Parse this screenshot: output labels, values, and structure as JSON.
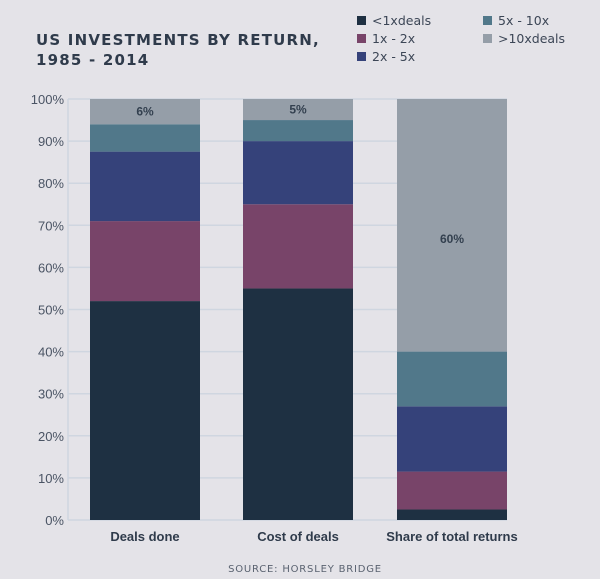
{
  "chart_data": {
    "type": "bar",
    "stacked": true,
    "title_lines": [
      "US INVESTMENTS BY RETURN,",
      "1985 - 2014"
    ],
    "source": "SOURCE: HORSLEY BRIDGE",
    "categories": [
      "Deals done",
      "Cost of deals",
      "Share of total returns"
    ],
    "series": [
      {
        "name": "<1xdeals",
        "color": "#1e3042",
        "values": [
          52,
          55,
          2.5
        ]
      },
      {
        "name": "1x - 2x",
        "color": "#784469",
        "values": [
          19,
          20,
          9
        ]
      },
      {
        "name": "2x - 5x",
        "color": "#35427a",
        "values": [
          16.5,
          15,
          15.5
        ]
      },
      {
        "name": "5x - 10x",
        "color": "#51788a",
        "values": [
          6.5,
          5,
          13
        ]
      },
      {
        "name": ">10xdeals",
        "color": "#959ea8",
        "values": [
          6,
          5,
          60
        ]
      }
    ],
    "data_labels": [
      "6%",
      "5%",
      "60%"
    ],
    "yticks": [
      "0%",
      "10%",
      "20%",
      "30%",
      "40%",
      "50%",
      "60%",
      "70%",
      "80%",
      "90%",
      "100%"
    ],
    "ylim": [
      0,
      100
    ],
    "xlabel": "",
    "ylabel": "",
    "grid": true,
    "legend_position": "top-right",
    "background": "#e4e3e8"
  }
}
